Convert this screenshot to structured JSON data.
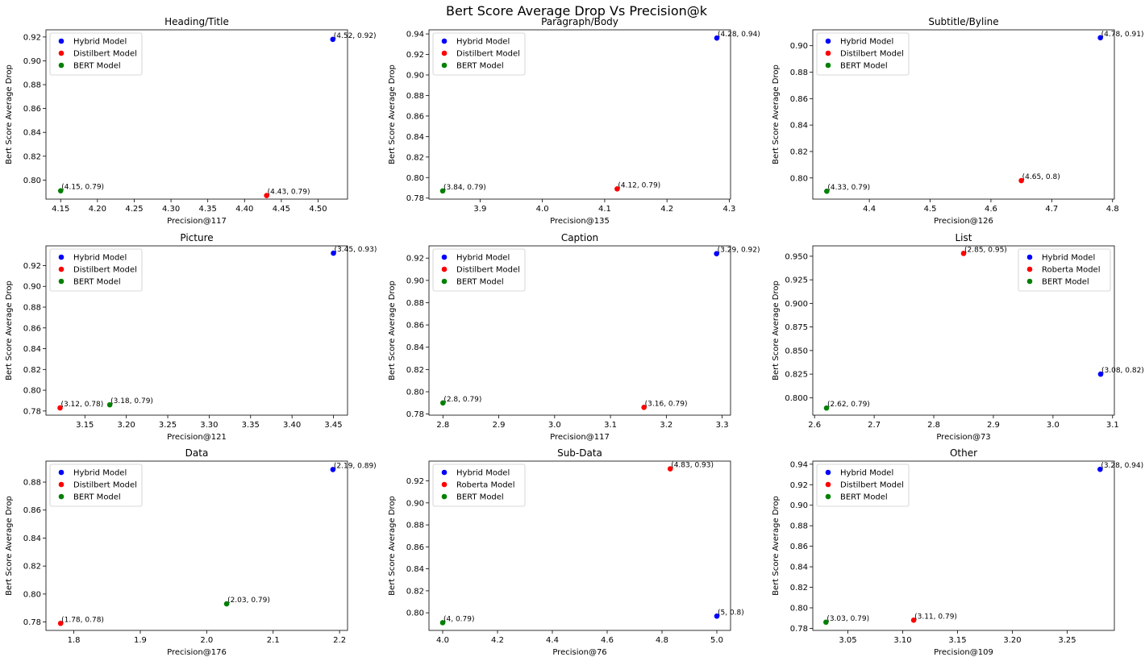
{
  "figure": {
    "title": "Bert Score Average Drop Vs Precision@k"
  },
  "chart_data": [
    {
      "type": "scatter",
      "title": "Heading/Title",
      "xlabel": "Precision@117",
      "ylabel": "Bert Score Average Drop",
      "xlim": [
        4.13,
        4.54
      ],
      "ylim": [
        0.784,
        0.926
      ],
      "xticks": [
        "4.15",
        "4.20",
        "4.25",
        "4.30",
        "4.35",
        "4.40",
        "4.45",
        "4.50"
      ],
      "yticks": [
        "0.80",
        "0.82",
        "0.84",
        "0.86",
        "0.88",
        "0.90",
        "0.92"
      ],
      "legend_position": "upper left",
      "series": [
        {
          "name": "Hybrid Model",
          "color": "#0000ff",
          "x": 4.52,
          "y": 0.918,
          "label": "(4.52, 0.92)"
        },
        {
          "name": "Distilbert Model",
          "color": "#ff0000",
          "x": 4.43,
          "y": 0.787,
          "label": "(4.43, 0.79)"
        },
        {
          "name": "BERT Model",
          "color": "#008000",
          "x": 4.15,
          "y": 0.791,
          "label": "(4.15, 0.79)"
        }
      ]
    },
    {
      "type": "scatter",
      "title": "Paragraph/Body",
      "xlabel": "Precision@135",
      "ylabel": "Bert Score Average Drop",
      "xlim": [
        3.818,
        4.302
      ],
      "ylim": [
        0.779,
        0.944
      ],
      "xticks": [
        "3.9",
        "4.0",
        "4.1",
        "4.2",
        "4.3"
      ],
      "yticks": [
        "0.78",
        "0.80",
        "0.82",
        "0.84",
        "0.86",
        "0.88",
        "0.90",
        "0.92",
        "0.94"
      ],
      "legend_position": "upper left",
      "series": [
        {
          "name": "Hybrid Model",
          "color": "#0000ff",
          "x": 4.28,
          "y": 0.936,
          "label": "(4.28, 0.94)"
        },
        {
          "name": "Distilbert Model",
          "color": "#ff0000",
          "x": 4.12,
          "y": 0.789,
          "label": "(4.12, 0.79)"
        },
        {
          "name": "BERT Model",
          "color": "#008000",
          "x": 3.84,
          "y": 0.787,
          "label": "(3.84, 0.79)"
        }
      ]
    },
    {
      "type": "scatter",
      "title": "Subtitle/Byline",
      "xlabel": "Precision@126",
      "ylabel": "Bert Score Average Drop",
      "xlim": [
        4.307,
        4.803
      ],
      "ylim": [
        0.784,
        0.912
      ],
      "xticks": [
        "4.4",
        "4.5",
        "4.6",
        "4.7",
        "4.8"
      ],
      "yticks": [
        "0.80",
        "0.82",
        "0.84",
        "0.86",
        "0.88",
        "0.90"
      ],
      "legend_position": "upper left",
      "series": [
        {
          "name": "Hybrid Model",
          "color": "#0000ff",
          "x": 4.78,
          "y": 0.906,
          "label": "(4.78, 0.91)"
        },
        {
          "name": "Distilbert Model",
          "color": "#ff0000",
          "x": 4.65,
          "y": 0.798,
          "label": "(4.65, 0.8)"
        },
        {
          "name": "BERT Model",
          "color": "#008000",
          "x": 4.33,
          "y": 0.79,
          "label": "(4.33, 0.79)"
        }
      ]
    },
    {
      "type": "scatter",
      "title": "Picture",
      "xlabel": "Precision@121",
      "ylabel": "Bert Score Average Drop",
      "xlim": [
        3.103,
        3.467
      ],
      "ylim": [
        0.776,
        0.939
      ],
      "xticks": [
        "3.15",
        "3.20",
        "3.25",
        "3.30",
        "3.35",
        "3.40",
        "3.45"
      ],
      "yticks": [
        "0.78",
        "0.80",
        "0.82",
        "0.84",
        "0.86",
        "0.88",
        "0.90",
        "0.92"
      ],
      "legend_position": "upper left",
      "series": [
        {
          "name": "Hybrid Model",
          "color": "#0000ff",
          "x": 3.45,
          "y": 0.932,
          "label": "(3.45, 0.93)"
        },
        {
          "name": "Distilbert Model",
          "color": "#ff0000",
          "x": 3.12,
          "y": 0.783,
          "label": "(3.12, 0.78)"
        },
        {
          "name": "BERT Model",
          "color": "#008000",
          "x": 3.18,
          "y": 0.786,
          "label": "(3.18, 0.79)"
        }
      ]
    },
    {
      "type": "scatter",
      "title": "Caption",
      "xlabel": "Precision@117",
      "ylabel": "Bert Score Average Drop",
      "xlim": [
        2.775,
        3.315
      ],
      "ylim": [
        0.779,
        0.931
      ],
      "xticks": [
        "2.8",
        "2.9",
        "3.0",
        "3.1",
        "3.2",
        "3.3"
      ],
      "yticks": [
        "0.78",
        "0.80",
        "0.82",
        "0.84",
        "0.86",
        "0.88",
        "0.90",
        "0.92"
      ],
      "legend_position": "upper left",
      "series": [
        {
          "name": "Hybrid Model",
          "color": "#0000ff",
          "x": 3.29,
          "y": 0.924,
          "label": "(3.29, 0.92)"
        },
        {
          "name": "Distilbert Model",
          "color": "#ff0000",
          "x": 3.16,
          "y": 0.786,
          "label": "(3.16, 0.79)"
        },
        {
          "name": "BERT Model",
          "color": "#008000",
          "x": 2.8,
          "y": 0.79,
          "label": "(2.8, 0.79)"
        }
      ]
    },
    {
      "type": "scatter",
      "title": "List",
      "xlabel": "Precision@73",
      "ylabel": "Bert Score Average Drop",
      "xlim": [
        2.597,
        3.103
      ],
      "ylim": [
        0.7815,
        0.961
      ],
      "xticks": [
        "2.6",
        "2.7",
        "2.8",
        "2.9",
        "3.0",
        "3.1"
      ],
      "yticks": [
        "0.800",
        "0.825",
        "0.850",
        "0.875",
        "0.900",
        "0.925",
        "0.950"
      ],
      "legend_position": "upper right",
      "series": [
        {
          "name": "Hybrid Model",
          "color": "#0000ff",
          "x": 3.08,
          "y": 0.825,
          "label": "(3.08, 0.82)"
        },
        {
          "name": "Roberta Model",
          "color": "#ff0000",
          "x": 2.85,
          "y": 0.953,
          "label": "(2.85, 0.95)"
        },
        {
          "name": "BERT Model",
          "color": "#008000",
          "x": 2.62,
          "y": 0.789,
          "label": "(2.62, 0.79)"
        }
      ]
    },
    {
      "type": "scatter",
      "title": "Data",
      "xlabel": "Precision@176",
      "ylabel": "Bert Score Average Drop",
      "xlim": [
        1.758,
        2.212
      ],
      "ylim": [
        0.774,
        0.895
      ],
      "xticks": [
        "1.8",
        "1.9",
        "2.0",
        "2.1",
        "2.2"
      ],
      "yticks": [
        "0.78",
        "0.80",
        "0.82",
        "0.84",
        "0.86",
        "0.88"
      ],
      "legend_position": "upper left",
      "series": [
        {
          "name": "Hybrid Model",
          "color": "#0000ff",
          "x": 2.19,
          "y": 0.889,
          "label": "(2.19, 0.89)"
        },
        {
          "name": "Distilbert Model",
          "color": "#ff0000",
          "x": 1.78,
          "y": 0.779,
          "label": "(1.78, 0.78)"
        },
        {
          "name": "BERT Model",
          "color": "#008000",
          "x": 2.03,
          "y": 0.793,
          "label": "(2.03, 0.79)"
        }
      ]
    },
    {
      "type": "scatter",
      "title": "Sub-Data",
      "xlabel": "Precision@76",
      "ylabel": "Bert Score Average Drop",
      "xlim": [
        3.95,
        5.05
      ],
      "ylim": [
        0.784,
        0.938
      ],
      "xticks": [
        "4.0",
        "4.2",
        "4.4",
        "4.6",
        "4.8",
        "5.0"
      ],
      "yticks": [
        "0.80",
        "0.82",
        "0.84",
        "0.86",
        "0.88",
        "0.90",
        "0.92"
      ],
      "legend_position": "upper left",
      "series": [
        {
          "name": "Hybrid Model",
          "color": "#0000ff",
          "x": 5.0,
          "y": 0.797,
          "label": "(5, 0.8)"
        },
        {
          "name": "Roberta Model",
          "color": "#ff0000",
          "x": 4.83,
          "y": 0.931,
          "label": "(4.83, 0.93)"
        },
        {
          "name": "BERT Model",
          "color": "#008000",
          "x": 4.0,
          "y": 0.791,
          "label": "(4, 0.79)"
        }
      ]
    },
    {
      "type": "scatter",
      "title": "Other",
      "xlabel": "Precision@109",
      "ylabel": "Bert Score Average Drop",
      "xlim": [
        3.018,
        3.293
      ],
      "ylim": [
        0.778,
        0.943
      ],
      "xticks": [
        "3.05",
        "3.10",
        "3.15",
        "3.20",
        "3.25"
      ],
      "yticks": [
        "0.78",
        "0.80",
        "0.82",
        "0.84",
        "0.86",
        "0.88",
        "0.90",
        "0.92",
        "0.94"
      ],
      "legend_position": "upper left",
      "series": [
        {
          "name": "Hybrid Model",
          "color": "#0000ff",
          "x": 3.28,
          "y": 0.935,
          "label": "(3.28, 0.94)"
        },
        {
          "name": "Distilbert Model",
          "color": "#ff0000",
          "x": 3.11,
          "y": 0.788,
          "label": "(3.11, 0.79)"
        },
        {
          "name": "BERT Model",
          "color": "#008000",
          "x": 3.03,
          "y": 0.786,
          "label": "(3.03, 0.79)"
        }
      ]
    }
  ]
}
